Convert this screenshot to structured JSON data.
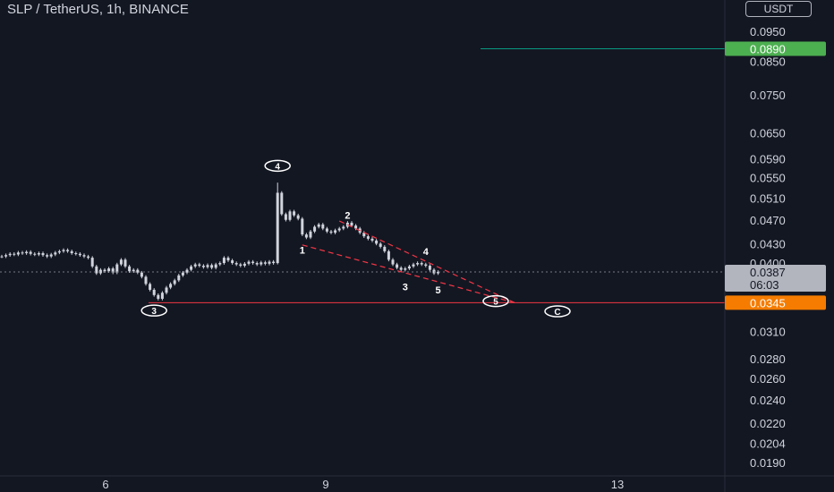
{
  "header": {
    "title": "SLP / TetherUS, 1h, BINANCE",
    "currency_button": "USDT"
  },
  "colors": {
    "background": "#131722",
    "candle": "#d1d4dc",
    "wave_line": "#f23645",
    "support_line": "#f23645",
    "target_line": "#089981",
    "target_badge": "#4caf50",
    "support_badge": "#f57c00",
    "current_badge": "#b2b5be",
    "axis_text": "#d1d4dc"
  },
  "chart_data": {
    "type": "candlestick",
    "symbol": "SLP / TetherUS",
    "interval": "1h",
    "exchange": "BINANCE",
    "y_scale": "log",
    "y_ticks": [
      "0.0950",
      "0.0850",
      "0.0750",
      "0.0650",
      "0.0590",
      "0.0550",
      "0.0510",
      "0.0470",
      "0.0430",
      "0.0400",
      "0.0310",
      "0.0280",
      "0.0260",
      "0.0240",
      "0.0220",
      "0.0204",
      "0.0190"
    ],
    "x_ticks": [
      "6",
      "9",
      "13"
    ],
    "x_tick_pos": [
      118,
      364,
      690
    ],
    "price_labels": [
      {
        "name": "target",
        "value": "0.0890",
        "price": 0.089
      },
      {
        "name": "current",
        "value": "0.0387",
        "price": 0.0387,
        "countdown": "06:03"
      },
      {
        "name": "support",
        "value": "0.0345",
        "price": 0.0345
      }
    ],
    "series_close": [
      0.041,
      0.0412,
      0.0414,
      0.0413,
      0.0416,
      0.0415,
      0.0417,
      0.0414,
      0.0413,
      0.0415,
      0.0412,
      0.041,
      0.0413,
      0.0416,
      0.0418,
      0.042,
      0.0418,
      0.0415,
      0.0414,
      0.0412,
      0.041,
      0.0408,
      0.0395,
      0.0385,
      0.039,
      0.0388,
      0.0392,
      0.0386,
      0.0398,
      0.0405,
      0.0395,
      0.0388,
      0.039,
      0.0386,
      0.038,
      0.037,
      0.0362,
      0.0355,
      0.035,
      0.0358,
      0.0365,
      0.037,
      0.0375,
      0.0382,
      0.0386,
      0.039,
      0.0395,
      0.0398,
      0.0396,
      0.0394,
      0.0397,
      0.0393,
      0.0398,
      0.04,
      0.0408,
      0.0404,
      0.04,
      0.0398,
      0.0396,
      0.0399,
      0.0402,
      0.04,
      0.0398,
      0.0401,
      0.0399,
      0.0402,
      0.04,
      0.052,
      0.048,
      0.047,
      0.0485,
      0.0478,
      0.0472,
      0.0445,
      0.044,
      0.045,
      0.0458,
      0.0462,
      0.0455,
      0.045,
      0.0448,
      0.0452,
      0.0455,
      0.0458,
      0.0465,
      0.046,
      0.0455,
      0.0448,
      0.0442,
      0.0438,
      0.0435,
      0.043,
      0.0425,
      0.0418,
      0.0405,
      0.0398,
      0.0393,
      0.039,
      0.0392,
      0.0395,
      0.0398,
      0.04,
      0.0398,
      0.0396,
      0.039,
      0.0385,
      0.0387
    ],
    "wave_labels": [
      {
        "label": "4",
        "circled": true,
        "price": 0.0575,
        "idx": 67
      },
      {
        "label": "3",
        "circled": true,
        "price": 0.0335,
        "idx": 37
      },
      {
        "label": "1",
        "circled": false,
        "price": 0.042,
        "idx": 73
      },
      {
        "label": "2",
        "circled": false,
        "price": 0.0478,
        "idx": 84
      },
      {
        "label": "4",
        "circled": false,
        "price": 0.0418,
        "idx": 103
      },
      {
        "label": "3",
        "circled": false,
        "price": 0.0366,
        "idx": 98
      },
      {
        "label": "5",
        "circled": false,
        "price": 0.0362,
        "idx": 106
      },
      {
        "label": "5",
        "circled": true,
        "price": 0.0347,
        "idx": 120
      },
      {
        "label": "C",
        "circled": true,
        "price": 0.0334,
        "idx": 135
      }
    ]
  }
}
